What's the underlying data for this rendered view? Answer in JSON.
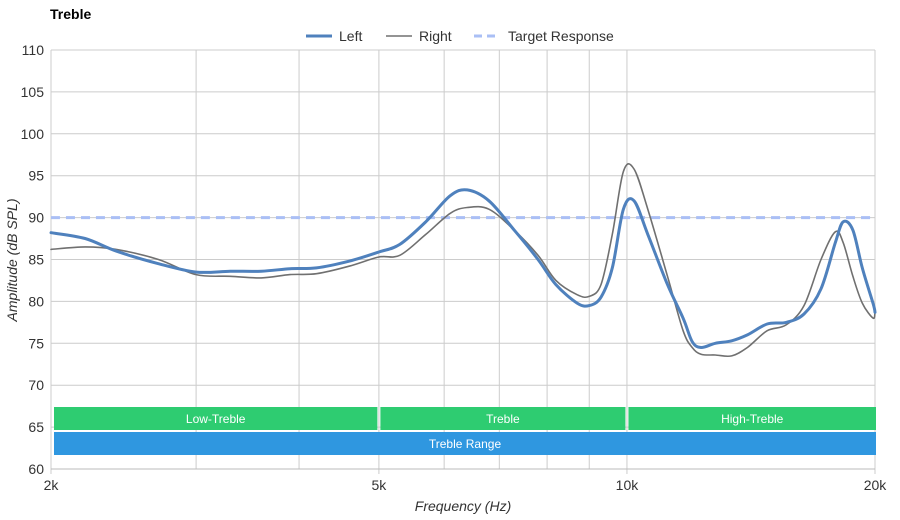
{
  "chart_data": {
    "type": "line",
    "title": "Treble",
    "xlabel": "Frequency (Hz)",
    "ylabel": "Amplitude (dB SPL)",
    "x_scale": "log",
    "xlim": [
      2000,
      20000
    ],
    "ylim": [
      60,
      110
    ],
    "x_ticks": [
      {
        "value": 2000,
        "label": "2k"
      },
      {
        "value": 5000,
        "label": "5k"
      },
      {
        "value": 10000,
        "label": "10k"
      },
      {
        "value": 20000,
        "label": "20k"
      }
    ],
    "y_ticks": [
      {
        "value": 60,
        "label": "60"
      },
      {
        "value": 65,
        "label": "65"
      },
      {
        "value": 70,
        "label": "70"
      },
      {
        "value": 75,
        "label": "75"
      },
      {
        "value": 80,
        "label": "80"
      },
      {
        "value": 85,
        "label": "85"
      },
      {
        "value": 90,
        "label": "90"
      },
      {
        "value": 95,
        "label": "95"
      },
      {
        "value": 100,
        "label": "100"
      },
      {
        "value": 105,
        "label": "105"
      },
      {
        "value": 110,
        "label": "110"
      }
    ],
    "minor_gridlines_x": [
      3000,
      4000,
      6000,
      7000,
      8000,
      9000
    ],
    "grid": true,
    "legend_position": "top-center",
    "series": [
      {
        "name": "Left",
        "color": "#4f81bd",
        "style": "solid-thick",
        "points": [
          [
            2000,
            88.2
          ],
          [
            2200,
            87.5
          ],
          [
            2400,
            86.0
          ],
          [
            2700,
            84.5
          ],
          [
            3000,
            83.5
          ],
          [
            3300,
            83.6
          ],
          [
            3600,
            83.6
          ],
          [
            3900,
            83.9
          ],
          [
            4200,
            84.0
          ],
          [
            4600,
            84.8
          ],
          [
            5000,
            85.9
          ],
          [
            5300,
            86.8
          ],
          [
            5700,
            89.5
          ],
          [
            6100,
            92.6
          ],
          [
            6400,
            93.3
          ],
          [
            6800,
            92.0
          ],
          [
            7300,
            88.5
          ],
          [
            7800,
            85.0
          ],
          [
            8200,
            82.0
          ],
          [
            8700,
            79.8
          ],
          [
            9000,
            79.5
          ],
          [
            9300,
            80.5
          ],
          [
            9600,
            84.0
          ],
          [
            9900,
            91.0
          ],
          [
            10200,
            92.0
          ],
          [
            10600,
            88.0
          ],
          [
            11200,
            82.0
          ],
          [
            11700,
            78.0
          ],
          [
            12000,
            75.2
          ],
          [
            12300,
            74.5
          ],
          [
            12800,
            75.0
          ],
          [
            13400,
            75.3
          ],
          [
            14000,
            76.0
          ],
          [
            14800,
            77.3
          ],
          [
            15600,
            77.5
          ],
          [
            16400,
            78.5
          ],
          [
            17200,
            81.5
          ],
          [
            17900,
            87.0
          ],
          [
            18300,
            89.5
          ],
          [
            18800,
            88.5
          ],
          [
            19300,
            84.0
          ],
          [
            19900,
            79.7
          ],
          [
            20500,
            78.7
          ]
        ]
      },
      {
        "name": "Right",
        "color": "#707070",
        "style": "solid-thin",
        "points": [
          [
            2000,
            86.2
          ],
          [
            2200,
            86.5
          ],
          [
            2400,
            86.2
          ],
          [
            2700,
            85.0
          ],
          [
            3000,
            83.2
          ],
          [
            3300,
            83.0
          ],
          [
            3600,
            82.8
          ],
          [
            3900,
            83.2
          ],
          [
            4200,
            83.3
          ],
          [
            4600,
            84.2
          ],
          [
            5000,
            85.3
          ],
          [
            5300,
            85.5
          ],
          [
            5700,
            88.0
          ],
          [
            6100,
            90.5
          ],
          [
            6400,
            91.2
          ],
          [
            6800,
            91.0
          ],
          [
            7300,
            88.5
          ],
          [
            7800,
            85.5
          ],
          [
            8200,
            82.5
          ],
          [
            8700,
            80.8
          ],
          [
            9000,
            80.6
          ],
          [
            9300,
            82.0
          ],
          [
            9600,
            88.0
          ],
          [
            9900,
            95.5
          ],
          [
            10200,
            95.8
          ],
          [
            10600,
            91.0
          ],
          [
            11200,
            83.0
          ],
          [
            11700,
            76.5
          ],
          [
            12000,
            74.5
          ],
          [
            12300,
            73.7
          ],
          [
            12800,
            73.6
          ],
          [
            13400,
            73.5
          ],
          [
            14000,
            74.5
          ],
          [
            14800,
            76.5
          ],
          [
            15600,
            77.2
          ],
          [
            16400,
            79.5
          ],
          [
            17200,
            85.0
          ],
          [
            17900,
            88.3
          ],
          [
            18300,
            87.0
          ],
          [
            18800,
            83.0
          ],
          [
            19300,
            79.8
          ],
          [
            19900,
            78.0
          ],
          [
            20500,
            78.9
          ]
        ]
      },
      {
        "name": "Target Response",
        "color": "#aabff5",
        "style": "dashed",
        "points": [
          [
            2000,
            90
          ],
          [
            20500,
            90
          ]
        ]
      }
    ],
    "bands": [
      {
        "label": "Low-Treble",
        "from": 2000,
        "to": 5000,
        "row": 0,
        "color": "#2ecc71"
      },
      {
        "label": "Treble",
        "from": 5000,
        "to": 10000,
        "row": 0,
        "color": "#2ecc71"
      },
      {
        "label": "High-Treble",
        "from": 10000,
        "to": 20500,
        "row": 0,
        "color": "#2ecc71"
      },
      {
        "label": "Treble Range",
        "from": 2000,
        "to": 20500,
        "row": 1,
        "color": "#2f97e0"
      }
    ]
  }
}
